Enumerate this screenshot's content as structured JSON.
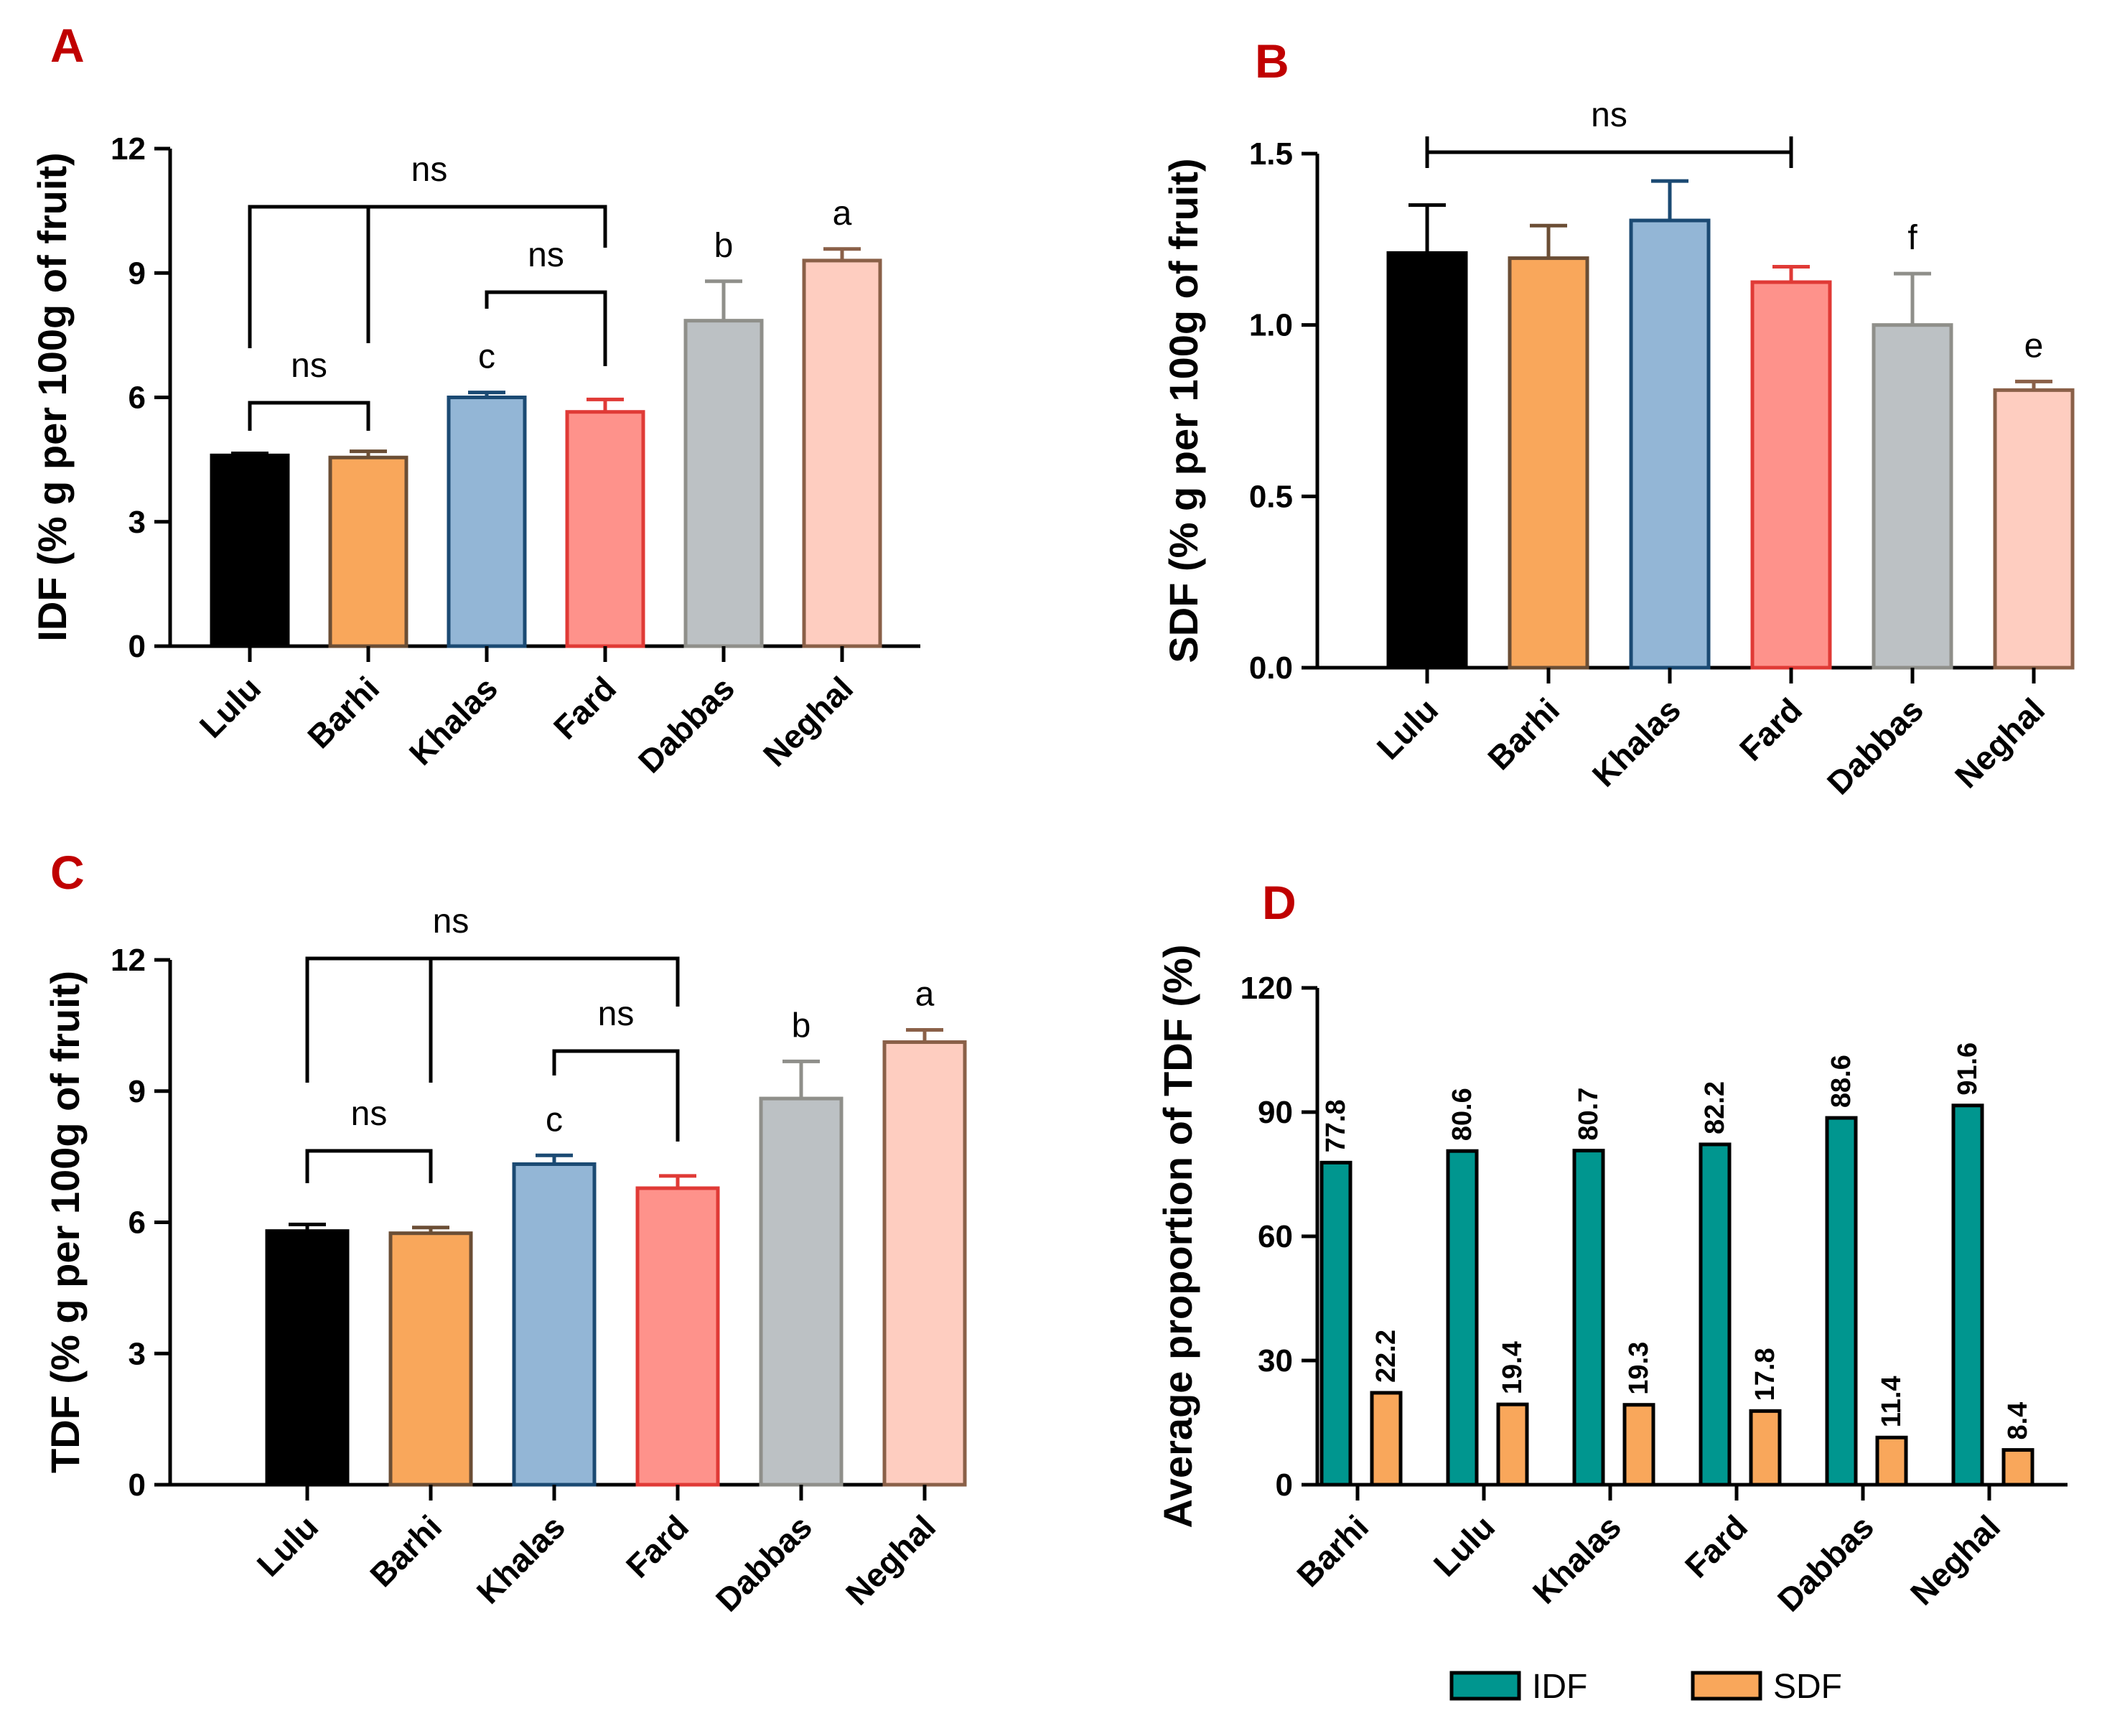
{
  "chart_data": [
    {
      "id": "A",
      "panel_label": "A",
      "type": "bar",
      "categories": [
        "Lulu",
        "Barhi",
        "Khalas",
        "Fard",
        "Dabbas",
        "Neghal"
      ],
      "values": [
        4.6,
        4.55,
        6.0,
        5.65,
        7.85,
        9.3
      ],
      "errors": [
        0.05,
        0.15,
        0.12,
        0.3,
        0.95,
        0.28
      ],
      "fill_colors": [
        "#000000",
        "#f9a75b",
        "#93b6d6",
        "#fe928b",
        "#bcc1c4",
        "#fecdc0"
      ],
      "stroke_colors": [
        "#000000",
        "#6b4e35",
        "#1b4a73",
        "#e03a36",
        "#8f8f8a",
        "#8a6048"
      ],
      "ylabel": "IDF (% g per 100g of fruit)",
      "ylim": [
        0,
        12
      ],
      "yticks": [
        0,
        3,
        6,
        9,
        12
      ],
      "ytick_labels": [
        "0",
        "3",
        "6",
        "9",
        "12"
      ],
      "letters": [
        {
          "category": "Khalas",
          "text": "c"
        },
        {
          "category": "Dabbas",
          "text": "b"
        },
        {
          "category": "Neghal",
          "text": "a"
        }
      ],
      "brackets": [
        {
          "from": "Lulu",
          "to": "Barhi",
          "text": "ns"
        },
        {
          "from": "Khalas",
          "to": "Fard",
          "text": "ns"
        },
        {
          "from": "Lulu",
          "to": "Fard",
          "text": "ns",
          "mid_drop": "Barhi"
        }
      ]
    },
    {
      "id": "B",
      "panel_label": "B",
      "type": "bar",
      "categories": [
        "Lulu",
        "Barhi",
        "Khalas",
        "Fard",
        "Dabbas",
        "Neghal"
      ],
      "values": [
        1.21,
        1.195,
        1.305,
        1.125,
        1.0,
        0.81
      ],
      "errors": [
        0.14,
        0.095,
        0.115,
        0.045,
        0.15,
        0.025
      ],
      "fill_colors": [
        "#000000",
        "#f9a75b",
        "#93b6d6",
        "#fe928b",
        "#bcc1c4",
        "#fecdc0"
      ],
      "stroke_colors": [
        "#000000",
        "#6b4e35",
        "#1b4a73",
        "#e03a36",
        "#8f8f8a",
        "#8a6048"
      ],
      "ylabel": "SDF (% g per 100g of fruit)",
      "ylim": [
        0,
        1.5
      ],
      "yticks": [
        0,
        0.5,
        1.0,
        1.5
      ],
      "ytick_labels": [
        "0.0",
        "0.5",
        "1.0",
        "1.5"
      ],
      "letters": [
        {
          "category": "Dabbas",
          "text": "f"
        },
        {
          "category": "Neghal",
          "text": "e"
        }
      ],
      "brackets": [
        {
          "from": "Lulu",
          "to": "Fard",
          "text": "ns",
          "style": "capped"
        }
      ]
    },
    {
      "id": "C",
      "panel_label": "C",
      "type": "bar",
      "categories": [
        "Lulu",
        "Barhi",
        "Khalas",
        "Fard",
        "Dabbas",
        "Neghal"
      ],
      "values": [
        5.8,
        5.75,
        7.33,
        6.78,
        8.83,
        10.12
      ],
      "errors": [
        0.15,
        0.13,
        0.2,
        0.28,
        0.85,
        0.28
      ],
      "fill_colors": [
        "#000000",
        "#f9a75b",
        "#93b6d6",
        "#fe928b",
        "#bcc1c4",
        "#fecdc0"
      ],
      "stroke_colors": [
        "#000000",
        "#6b4e35",
        "#1b4a73",
        "#e03a36",
        "#8f8f8a",
        "#8a6048"
      ],
      "ylabel": "TDF (% g per 100g of fruit)",
      "ylim": [
        0,
        12
      ],
      "yticks": [
        0,
        3,
        6,
        9,
        12
      ],
      "ytick_labels": [
        "0",
        "3",
        "6",
        "9",
        "12"
      ],
      "letters": [
        {
          "category": "Khalas",
          "text": "c"
        },
        {
          "category": "Dabbas",
          "text": "b"
        },
        {
          "category": "Neghal",
          "text": "a"
        }
      ],
      "brackets": [
        {
          "from": "Lulu",
          "to": "Barhi",
          "text": "ns"
        },
        {
          "from": "Khalas",
          "to": "Fard",
          "text": "ns"
        },
        {
          "from": "Lulu",
          "to": "Fard",
          "text": "ns",
          "mid_drop": "Barhi"
        }
      ]
    },
    {
      "id": "D",
      "panel_label": "D",
      "type": "bar",
      "categories": [
        "Barhi",
        "Lulu",
        "Khalas",
        "Fard",
        "Dabbas",
        "Neghal"
      ],
      "series": [
        {
          "name": "IDF",
          "values": [
            77.8,
            80.6,
            80.7,
            82.2,
            88.6,
            91.6
          ],
          "labels": [
            "77.8",
            "80.6",
            "80.7",
            "82.2",
            "88.6",
            "91.6"
          ],
          "color": "#00968f"
        },
        {
          "name": "SDF",
          "values": [
            22.2,
            19.4,
            19.3,
            17.8,
            11.4,
            8.4
          ],
          "labels": [
            "22.2",
            "19.4",
            "19.3",
            "17.8",
            "11.4",
            "8.4"
          ],
          "color": "#f9a75b"
        }
      ],
      "ylabel": "Average proportion of TDF (%)",
      "ylim": [
        0,
        120
      ],
      "yticks": [
        0,
        30,
        60,
        90,
        120
      ],
      "ytick_labels": [
        "0",
        "30",
        "60",
        "90",
        "120"
      ],
      "legend": [
        {
          "name": "IDF",
          "color": "#00968f"
        },
        {
          "name": "SDF",
          "color": "#f9a75b"
        }
      ],
      "legend_position": "bottom"
    }
  ]
}
